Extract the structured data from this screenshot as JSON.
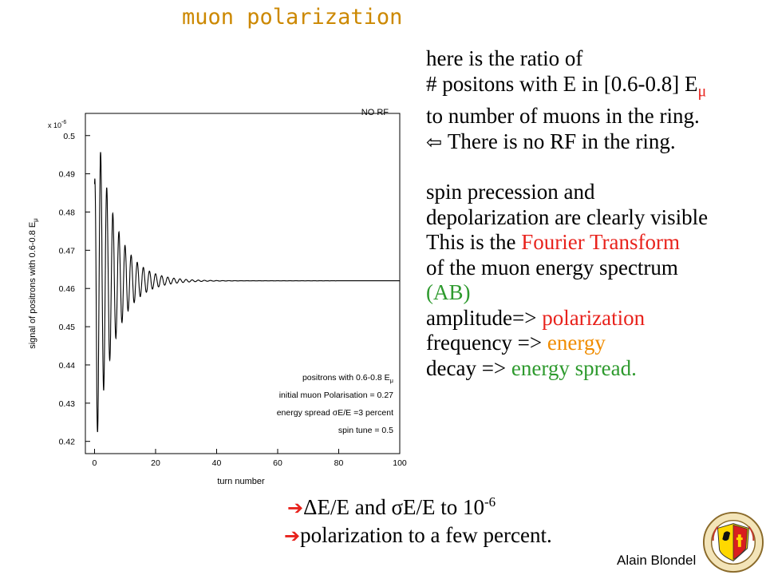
{
  "slide_title": "muon polarization",
  "text": {
    "l1": "here is the ratio of",
    "l2a": "# positons with E in [0.6-0.8] E",
    "l2_mu": "μ",
    "l3": "to number of muons in the ring.",
    "l4": "There is no RF in the ring.",
    "l5": "spin precession and",
    "l6": "depolarization are clearly visible",
    "l7a": "This is the ",
    "l7b": "Fourier Transform",
    "l8": "of the muon energy spectrum",
    "l9": "(AB)",
    "l10a": "amplitude=> ",
    "l10b": "polarization",
    "l11a": "frequency => ",
    "l11b": "energy",
    "l12a": "decay => ",
    "l12b": "energy spread."
  },
  "bottom": {
    "arrow": "➔",
    "l1a": "ΔE/E and ",
    "l1b": "σE/E  to 10",
    "l1_exp": "-6",
    "l2": "polarization to a few percent."
  },
  "author": "Alain Blondel",
  "chart_data": {
    "type": "line",
    "title": "NO RF",
    "xlabel": "turn number",
    "ylabel": "signal of positrons with 0.6-0.8 E",
    "ylabel_sub": "μ",
    "y_multiplier": "x 10",
    "y_multiplier_exp": "-6",
    "xlim": [
      -3,
      100
    ],
    "ylim": [
      0.4168,
      0.5058
    ],
    "xticks": [
      "0",
      "20",
      "40",
      "60",
      "80",
      "100"
    ],
    "yticks": [
      "0.42",
      "0.43",
      "0.44",
      "0.45",
      "0.46",
      "0.47",
      "0.48",
      "0.49",
      "0.5"
    ],
    "baseline": 0.462,
    "envelope_start": 0.0422,
    "envelope_decay_turns": 6.2,
    "oscillation_period_turns": 2,
    "annotations": [
      "positrons with 0.6-0.8 E",
      "initial muon  Polarisation = 0.27",
      "energy spread σE/E =3 percent",
      "spin tune = 0.5"
    ],
    "annotation_sub": "μ"
  }
}
